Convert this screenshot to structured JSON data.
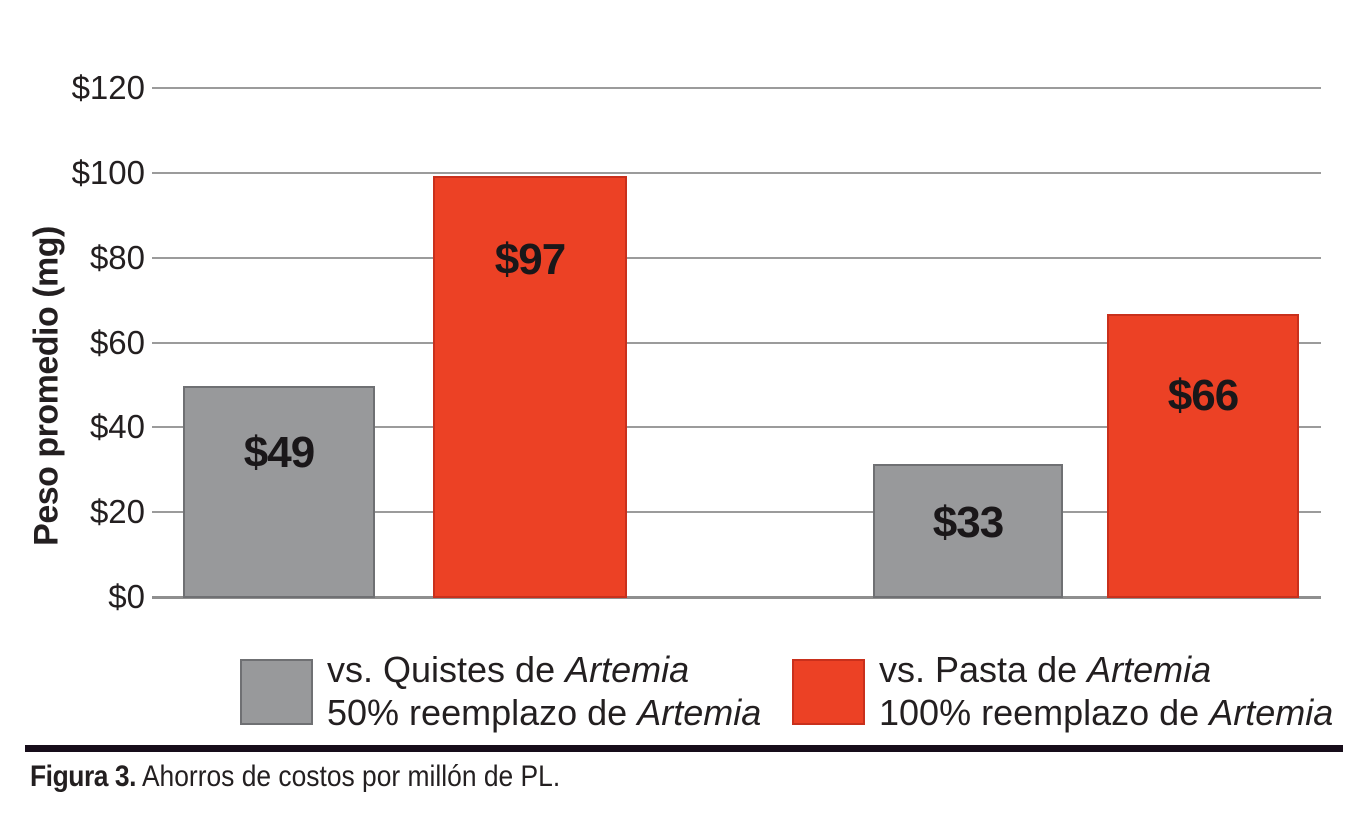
{
  "chart_data": {
    "type": "bar",
    "title": "",
    "xlabel": "",
    "ylabel": "Peso promedio (mg)",
    "ylim": [
      0,
      120
    ],
    "yticks": [
      120,
      100,
      80,
      60,
      40,
      20,
      0
    ],
    "ytick_labels": [
      "$120",
      "$100",
      "$80",
      "$60",
      "$40",
      "$20",
      "$0"
    ],
    "grid": "horizontal",
    "legend_position": "bottom",
    "categories": [
      "",
      ""
    ],
    "series": [
      {
        "name": "vs. Quistes de Artemia / 50% reemplazo de Artemia",
        "color": "#98999b",
        "border": "#6f7073",
        "values": [
          49,
          33
        ]
      },
      {
        "name": "vs. Pasta de Artemia / 100% reemplazo de Artemia",
        "color": "#ec4125",
        "border": "#c9301c",
        "values": [
          97,
          66
        ]
      }
    ],
    "bars": [
      {
        "group": 1,
        "series": 0,
        "label": "$49",
        "value": 49,
        "visual_value": 50
      },
      {
        "group": 1,
        "series": 1,
        "label": "$97",
        "value": 97,
        "visual_value": 99.5
      },
      {
        "group": 2,
        "series": 0,
        "label": "$33",
        "value": 33,
        "visual_value": 31.5
      },
      {
        "group": 2,
        "series": 1,
        "label": "$66",
        "value": 66,
        "visual_value": 67
      }
    ]
  },
  "legend": {
    "items": [
      {
        "color": "#98999b",
        "border": "#6f7073",
        "line1_prefix": "vs. Quistes de ",
        "line1_italic": "Artemia",
        "line2_prefix": "50% reemplazo de ",
        "line2_italic": "Artemia"
      },
      {
        "color": "#ec4125",
        "border": "#c9301c",
        "line1_prefix": "vs. Pasta de ",
        "line1_italic": "Artemia",
        "line2_prefix": "100% reemplazo de ",
        "line2_italic": "Artemia"
      }
    ]
  },
  "caption": {
    "bold": "Figura 3.",
    "rest": " Ahorros de costos por millón de PL."
  }
}
